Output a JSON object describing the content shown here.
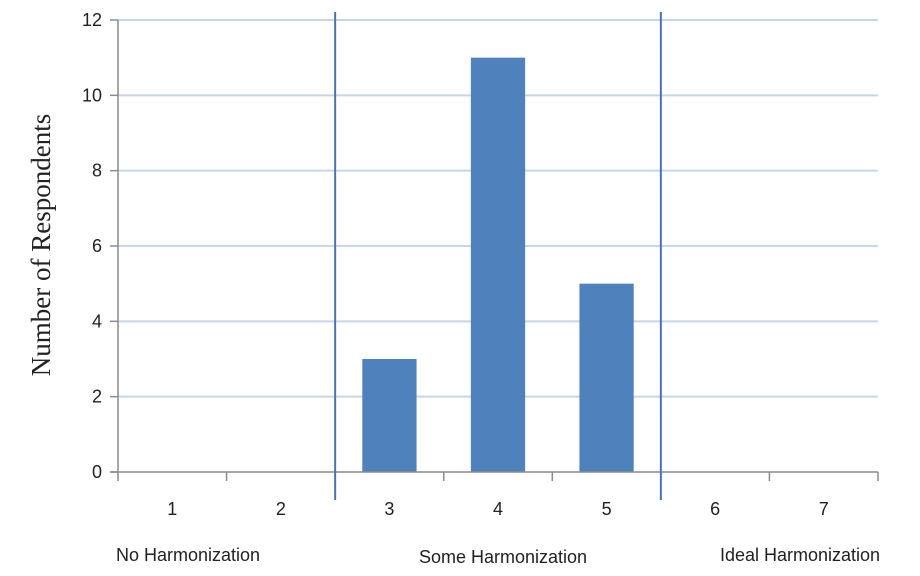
{
  "chart_data": {
    "type": "bar",
    "categories": [
      "1",
      "2",
      "3",
      "4",
      "5",
      "6",
      "7"
    ],
    "values": [
      0,
      0,
      3,
      11,
      5,
      0,
      0
    ],
    "title": "",
    "xlabel": "",
    "ylabel": "Number of Respondents",
    "ylim": [
      0,
      12
    ],
    "yticks": [
      "0",
      "2",
      "4",
      "6",
      "8",
      "10",
      "12"
    ],
    "grid": true,
    "legend": "none",
    "colors": {
      "bar": "#4f81bd",
      "gridline": "#c6d5ea",
      "axis": "#8c8c8c",
      "divider": "#4a74ad"
    },
    "region_dividers_between": [
      [
        2,
        3
      ],
      [
        5,
        6
      ]
    ],
    "regions": [
      "No Harmonization",
      "Some Harmonization",
      "Ideal Harmonization"
    ]
  }
}
